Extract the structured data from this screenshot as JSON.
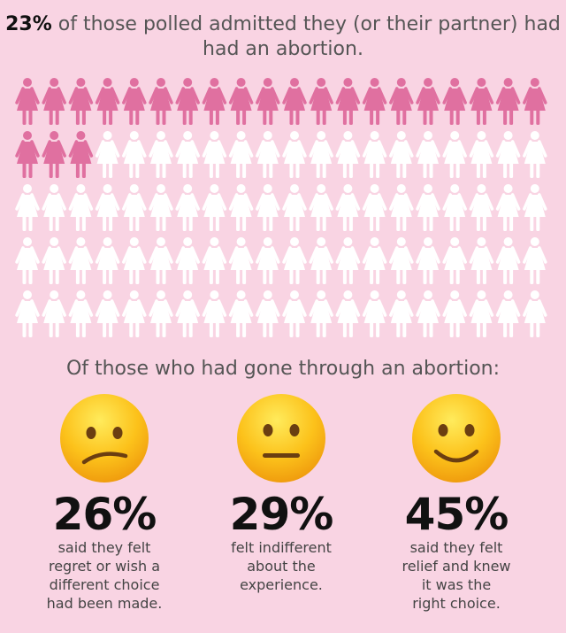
{
  "headline": {
    "bold": "23%",
    "rest": " of those polled admitted they (or their partner) had had an abortion."
  },
  "chart_data": {
    "type": "pictogram",
    "total": 100,
    "highlighted": 23,
    "columns": 20,
    "icon": "woman-figure-icon",
    "colors": {
      "highlighted": "#e070a0",
      "other": "#ffffff",
      "background": "#f9d4e3"
    }
  },
  "subhead": "Of those who had gone through an abortion:",
  "stats": [
    {
      "emoji": "confused-face-icon",
      "percent": "26%",
      "text": "said they felt\nregret or wish a\ndifferent choice\nhad been made."
    },
    {
      "emoji": "neutral-face-icon",
      "percent": "29%",
      "text": "felt indifferent\nabout the\nexperience."
    },
    {
      "emoji": "slightly-smiling-face-icon",
      "percent": "45%",
      "text": "said they felt\nrelief and knew\nit was the\nright choice."
    }
  ]
}
